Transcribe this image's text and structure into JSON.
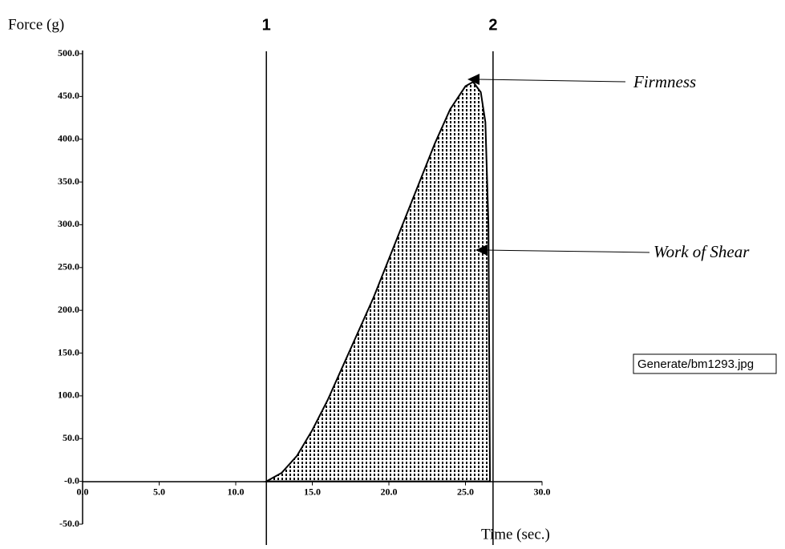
{
  "chart_data": {
    "type": "area",
    "y_label": "Force (g)",
    "x_label": "Time (sec.)",
    "x": [
      12.0,
      13.0,
      14.0,
      15.0,
      16.0,
      17.0,
      18.0,
      19.0,
      20.0,
      21.0,
      22.0,
      23.0,
      24.0,
      25.0,
      25.5,
      26.0,
      26.3,
      26.5,
      26.6
    ],
    "values": [
      0,
      10,
      30,
      60,
      95,
      135,
      175,
      215,
      260,
      305,
      350,
      395,
      435,
      462,
      467,
      455,
      420,
      300,
      0
    ],
    "color": "#000000",
    "xlim": [
      0,
      30
    ],
    "ylim": [
      -50,
      500
    ],
    "xticks": [
      {
        "value": 0,
        "label": "0.0"
      },
      {
        "value": 5,
        "label": "5.0"
      },
      {
        "value": 10,
        "label": "10.0"
      },
      {
        "value": 15,
        "label": "15.0"
      },
      {
        "value": 20,
        "label": "20.0"
      },
      {
        "value": 25,
        "label": "25.0"
      },
      {
        "value": 30,
        "label": "30.0"
      }
    ],
    "yticks": [
      {
        "value": -50,
        "label": "-50.0"
      },
      {
        "value": 0,
        "label": "-0.0"
      },
      {
        "value": 50,
        "label": "50.0"
      },
      {
        "value": 100,
        "label": "100.0"
      },
      {
        "value": 150,
        "label": "150.0"
      },
      {
        "value": 200,
        "label": "200.0"
      },
      {
        "value": 250,
        "label": "250.0"
      },
      {
        "value": 300,
        "label": "300.0"
      },
      {
        "value": 350,
        "label": "350.0"
      },
      {
        "value": 400,
        "label": "400.0"
      },
      {
        "value": 450,
        "label": "450.0"
      },
      {
        "value": 500,
        "label": "500.0"
      }
    ],
    "markers": [
      {
        "x": 12.0,
        "label": "1"
      },
      {
        "x": 26.8,
        "label": "2"
      }
    ],
    "annotations": [
      "Firmness",
      "Work of Shear"
    ]
  },
  "tooltip": "Generate/bm1293.jpg"
}
